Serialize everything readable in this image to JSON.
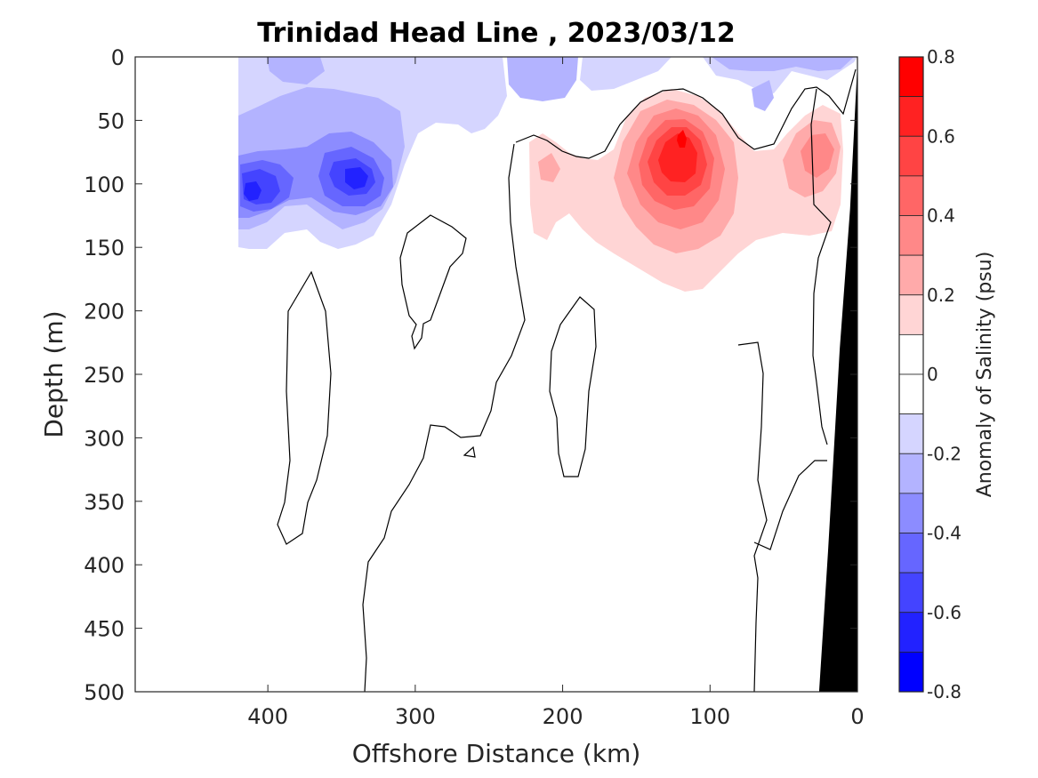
{
  "chart_data": {
    "type": "contourf",
    "title": "Trinidad Head Line , 2023/03/12",
    "xlabel": "Offshore Distance (km)",
    "ylabel": "Depth (m)",
    "colorbar_label": "Anomaly of Salinity (psu)",
    "xlim": [
      490,
      0
    ],
    "ylim": [
      500,
      0
    ],
    "x_reversed": true,
    "y_reversed": true,
    "x_ticks": [
      400,
      300,
      200,
      100,
      0
    ],
    "y_ticks": [
      0,
      50,
      100,
      150,
      200,
      250,
      300,
      350,
      400,
      450,
      500
    ],
    "colorbar": {
      "range": [
        -0.8,
        0.8
      ],
      "ticks": [
        0.8,
        0.6,
        0.4,
        0.2,
        0,
        -0.2,
        -0.4,
        -0.6,
        -0.8
      ],
      "tick_labels": [
        "0.8",
        "0.6",
        "0.4",
        "0.2",
        "0",
        "-0.2",
        "-0.4",
        "-0.6",
        "-0.8"
      ],
      "levels": [
        {
          "lo": 0.7,
          "hi": 0.8,
          "color": "#ff0000"
        },
        {
          "lo": 0.6,
          "hi": 0.7,
          "color": "#ff2222"
        },
        {
          "lo": 0.5,
          "hi": 0.6,
          "color": "#ff4444"
        },
        {
          "lo": 0.4,
          "hi": 0.5,
          "color": "#ff6666"
        },
        {
          "lo": 0.3,
          "hi": 0.4,
          "color": "#ff8888"
        },
        {
          "lo": 0.2,
          "hi": 0.3,
          "color": "#ffaaaa"
        },
        {
          "lo": 0.1,
          "hi": 0.2,
          "color": "#ffd5d5"
        },
        {
          "lo": 0.0,
          "hi": 0.1,
          "color": "#ffffff"
        },
        {
          "lo": -0.1,
          "hi": 0.0,
          "color": "#ffffff"
        },
        {
          "lo": -0.2,
          "hi": -0.1,
          "color": "#d5d5ff"
        },
        {
          "lo": -0.3,
          "hi": -0.2,
          "color": "#b3b3ff"
        },
        {
          "lo": -0.4,
          "hi": -0.3,
          "color": "#8c8cff"
        },
        {
          "lo": -0.5,
          "hi": -0.4,
          "color": "#6666ff"
        },
        {
          "lo": -0.6,
          "hi": -0.5,
          "color": "#4444ff"
        },
        {
          "lo": -0.7,
          "hi": -0.6,
          "color": "#2222ff"
        },
        {
          "lo": -0.8,
          "hi": -0.7,
          "color": "#0000ff"
        }
      ]
    },
    "anomaly_features": [
      {
        "kind": "negative",
        "center_km": 380,
        "center_depth_m": 60,
        "span_km": [
          420,
          210
        ],
        "span_depth_m": [
          0,
          175
        ],
        "min_anomaly": -0.4
      },
      {
        "kind": "negative",
        "center_km": 340,
        "center_depth_m": 97,
        "min_anomaly": -0.7
      },
      {
        "kind": "negative",
        "center_km": 410,
        "center_depth_m": 105,
        "min_anomaly": -0.7
      },
      {
        "kind": "negative",
        "center_km": 90,
        "center_depth_m": 15,
        "span_km": [
          110,
          0
        ],
        "span_depth_m": [
          0,
          60
        ],
        "min_anomaly": -0.3
      },
      {
        "kind": "positive",
        "center_km": 120,
        "center_depth_m": 68,
        "span_km": [
          225,
          10
        ],
        "span_depth_m": [
          30,
          185
        ],
        "max_anomaly": 0.7
      },
      {
        "kind": "positive",
        "center_km": 210,
        "center_depth_m": 88,
        "max_anomaly": 0.2
      },
      {
        "kind": "positive",
        "center_km": 30,
        "center_depth_m": 70,
        "max_anomaly": 0.3
      }
    ],
    "bathymetry": {
      "description": "continental slope shown in black",
      "points_km_m": [
        [
          0,
          5
        ],
        [
          0,
          500
        ],
        [
          26,
          500
        ],
        [
          20,
          390
        ],
        [
          12,
          230
        ],
        [
          5,
          120
        ]
      ]
    },
    "zero_contour": {
      "color": "#000000"
    }
  }
}
